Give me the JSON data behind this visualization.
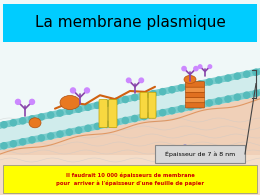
{
  "title": "La membrane plasmique",
  "title_bg": "#00ccff",
  "title_color": "#000000",
  "title_fontsize": 11,
  "bg_color": "#ffffff",
  "annotation_box_text": "Épaisseur de 7 à 8 nm",
  "annotation_box_bg": "#e8e8e8",
  "annotation_box_color": "#000000",
  "bottom_box_text": "Il faudrait 10 000 épaisseurs de membrane\npour  arriver à l'épaisseur d'une feuille de papier",
  "bottom_box_bg": "#ffff00",
  "bottom_box_color": "#cc0000",
  "extracell_color": "#ffffff",
  "outer_head_color": "#66cccc",
  "tail_color_light": "#b8e8e8",
  "tail_color_dark": "#c8c8c8",
  "inner_head_color": "#66cccc",
  "cyto_color": "#f0d0b8",
  "cyto_color2": "#e8c8a8",
  "orange_protein": "#e87820",
  "yellow_protein": "#f8d840",
  "glyco_color": "#8844aa",
  "glyco_tip": "#cc88ff",
  "orange_line": "#d06010"
}
